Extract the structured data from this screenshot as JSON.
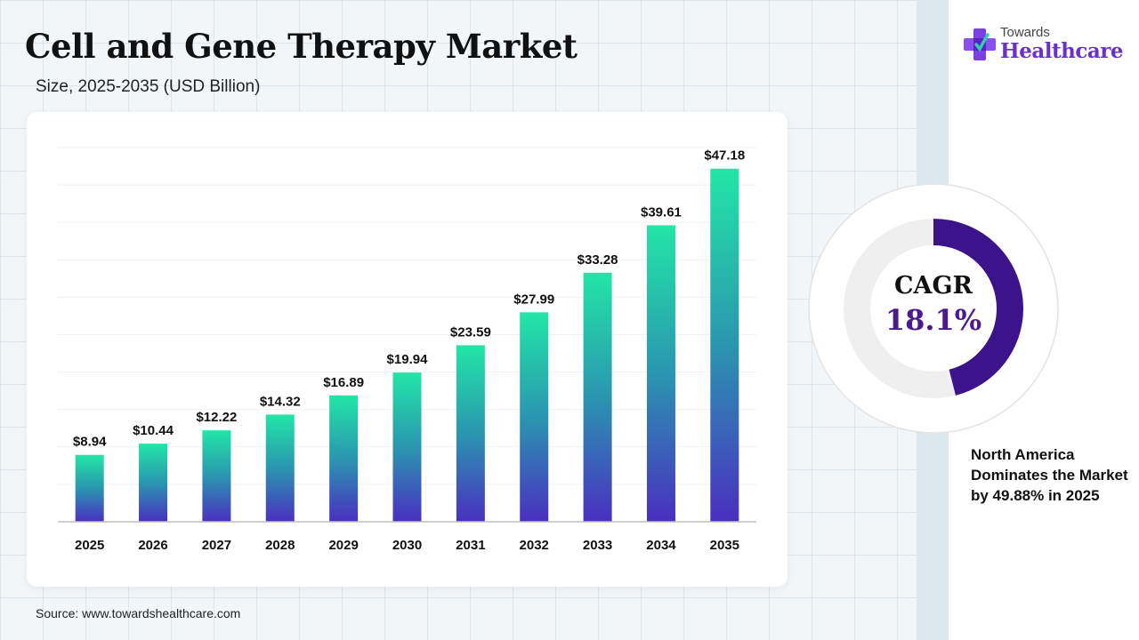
{
  "title": "Cell and Gene Therapy Market",
  "subtitle": "Size, 2025-2035 (USD Billion)",
  "source": "Source: www.towardshealthcare.com",
  "logo": {
    "small": "Towards",
    "big": "Healthcare",
    "icon": "medical-cross-icon"
  },
  "cagr": {
    "label": "CAGR",
    "value": "18.1%",
    "fraction": 0.181
  },
  "note": "North America Dominates the Market by 49.88% in 2025",
  "colors": {
    "bar_top": "#22e6a6",
    "bar_mid": "#2a96b0",
    "bar_bottom": "#4a2fc0",
    "cagr_arc": "#3b138a",
    "cagr_value": "#4b1a8e",
    "brand": "#6a32c9"
  },
  "chart_data": {
    "type": "bar",
    "categories": [
      "2025",
      "2026",
      "2027",
      "2028",
      "2029",
      "2030",
      "2031",
      "2032",
      "2033",
      "2034",
      "2035"
    ],
    "values": [
      8.94,
      10.44,
      12.22,
      14.32,
      16.89,
      19.94,
      23.59,
      27.99,
      33.28,
      39.61,
      47.18
    ],
    "value_labels": [
      "$8.94",
      "$10.44",
      "$12.22",
      "$14.32",
      "$16.89",
      "$19.94",
      "$23.59",
      "$27.99",
      "$33.28",
      "$39.61",
      "$47.18"
    ],
    "ylim": [
      0,
      50
    ],
    "grid": true,
    "legend": false
  }
}
